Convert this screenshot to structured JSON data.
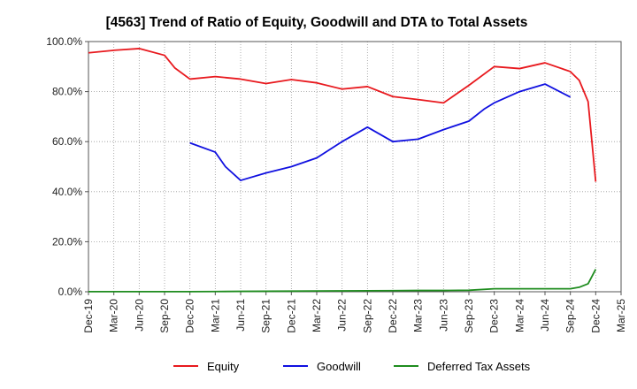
{
  "chart_data": {
    "type": "line",
    "title": "[4563]  Trend of Ratio of Equity, Goodwill and DTA to Total Assets",
    "xlabel": "",
    "ylabel": "",
    "ylim": [
      0,
      100
    ],
    "y_ticks": [
      0,
      20,
      40,
      60,
      80,
      100
    ],
    "y_tick_labels": [
      "0.0%",
      "20.0%",
      "40.0%",
      "60.0%",
      "80.0%",
      "100.0%"
    ],
    "x_tick_labels": [
      "Dec-19",
      "Mar-20",
      "Jun-20",
      "Sep-20",
      "Dec-20",
      "Mar-21",
      "Jun-21",
      "Sep-21",
      "Dec-21",
      "Mar-22",
      "Jun-22",
      "Sep-22",
      "Dec-22",
      "Mar-23",
      "Jun-23",
      "Sep-23",
      "Dec-23",
      "Mar-24",
      "Jun-24",
      "Sep-24",
      "Dec-24",
      "Mar-25"
    ],
    "grid": true,
    "legend_position": "bottom",
    "series": [
      {
        "name": "Equity",
        "color": "#e8191e",
        "points": [
          [
            0,
            95.5
          ],
          [
            1,
            96.5
          ],
          [
            2,
            97.2
          ],
          [
            3,
            94.5
          ],
          [
            3.4,
            89.5
          ],
          [
            4,
            85.0
          ],
          [
            5,
            86.0
          ],
          [
            6,
            85.0
          ],
          [
            7,
            83.2
          ],
          [
            8,
            84.8
          ],
          [
            9,
            83.5
          ],
          [
            10,
            81.0
          ],
          [
            11,
            82.0
          ],
          [
            12,
            78.0
          ],
          [
            13,
            76.8
          ],
          [
            14,
            75.5
          ],
          [
            15,
            82.5
          ],
          [
            16,
            90.0
          ],
          [
            17,
            89.2
          ],
          [
            18,
            91.5
          ],
          [
            19,
            88.0
          ],
          [
            19.35,
            84.5
          ],
          [
            19.7,
            76.0
          ],
          [
            20,
            44.0
          ]
        ]
      },
      {
        "name": "Goodwill",
        "color": "#1010e0",
        "points": [
          [
            4,
            59.5
          ],
          [
            5,
            55.8
          ],
          [
            5.4,
            50.0
          ],
          [
            6,
            44.5
          ],
          [
            7,
            47.5
          ],
          [
            8,
            50.0
          ],
          [
            9,
            53.5
          ],
          [
            10,
            60.0
          ],
          [
            11,
            65.8
          ],
          [
            12,
            60.0
          ],
          [
            13,
            61.0
          ],
          [
            14,
            64.8
          ],
          [
            15,
            68.2
          ],
          [
            15.6,
            73.0
          ],
          [
            16,
            75.5
          ],
          [
            17,
            80.0
          ],
          [
            18,
            83.0
          ],
          [
            19,
            77.8
          ]
        ]
      },
      {
        "name": "Deferred Tax Assets",
        "color": "#1e8c1e",
        "points": [
          [
            0,
            0.05
          ],
          [
            1,
            0.05
          ],
          [
            2,
            0.05
          ],
          [
            3,
            0.05
          ],
          [
            4,
            0.05
          ],
          [
            5,
            0.1
          ],
          [
            6,
            0.15
          ],
          [
            7,
            0.2
          ],
          [
            8,
            0.25
          ],
          [
            9,
            0.3
          ],
          [
            10,
            0.35
          ],
          [
            11,
            0.4
          ],
          [
            12,
            0.45
          ],
          [
            13,
            0.5
          ],
          [
            14,
            0.5
          ],
          [
            15,
            0.6
          ],
          [
            16,
            1.2
          ],
          [
            17,
            1.2
          ],
          [
            18,
            1.2
          ],
          [
            19,
            1.2
          ],
          [
            19.35,
            1.8
          ],
          [
            19.7,
            3.2
          ],
          [
            20,
            9.0
          ]
        ]
      }
    ]
  }
}
